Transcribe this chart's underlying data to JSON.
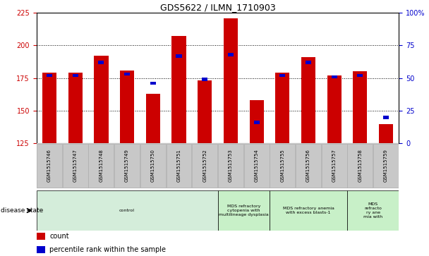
{
  "title": "GDS5622 / ILMN_1710903",
  "samples": [
    "GSM1515746",
    "GSM1515747",
    "GSM1515748",
    "GSM1515749",
    "GSM1515750",
    "GSM1515751",
    "GSM1515752",
    "GSM1515753",
    "GSM1515754",
    "GSM1515755",
    "GSM1515756",
    "GSM1515757",
    "GSM1515758",
    "GSM1515759"
  ],
  "counts": [
    179,
    179,
    192,
    181,
    163,
    207,
    173,
    221,
    158,
    179,
    191,
    177,
    180,
    140
  ],
  "percentile_ranks": [
    52,
    52,
    62,
    53,
    46,
    67,
    49,
    68,
    16,
    52,
    62,
    51,
    52,
    20
  ],
  "ylim_left": [
    125,
    225
  ],
  "ylim_right": [
    0,
    100
  ],
  "yticks_left": [
    125,
    150,
    175,
    200,
    225
  ],
  "yticks_right": [
    0,
    25,
    50,
    75,
    100
  ],
  "bar_color": "#cc0000",
  "percentile_color": "#0000cc",
  "disease_groups": [
    {
      "label": "control",
      "start": 0,
      "end": 7,
      "color": "#d4edda"
    },
    {
      "label": "MDS refractory\ncytopenia with\nmultilineage dysplasia",
      "start": 7,
      "end": 9,
      "color": "#c8f0c8"
    },
    {
      "label": "MDS refractory anemia\nwith excess blasts-1",
      "start": 9,
      "end": 12,
      "color": "#c8f0c8"
    },
    {
      "label": "MDS\nrefracto\nry ane\nmia with",
      "start": 12,
      "end": 14,
      "color": "#c8f0c8"
    }
  ],
  "legend_count_label": "count",
  "legend_percentile_label": "percentile rank within the sample",
  "disease_state_label": "disease state",
  "bar_color_hex": "#cc0000",
  "percentile_color_hex": "#0000cc",
  "tick_area_color": "#c8c8c8"
}
